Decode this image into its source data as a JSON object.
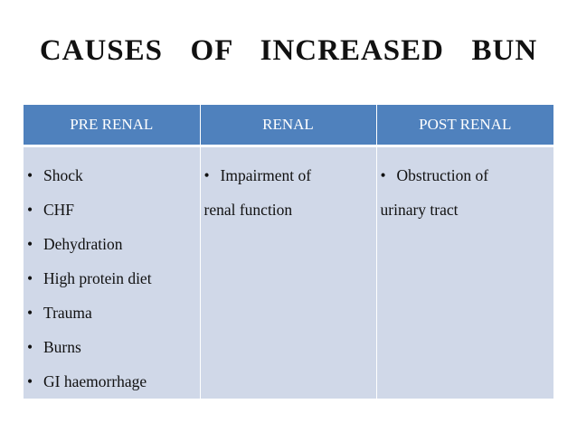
{
  "title": "CAUSES  OF  INCREASED  BUN",
  "table": {
    "headers": [
      "PRE RENAL",
      "RENAL",
      "POST RENAL"
    ],
    "pre_renal": {
      "items": [
        "Shock",
        "CHF",
        "Dehydration",
        "High protein diet",
        "Trauma",
        "Burns",
        "GI haemorrhage"
      ]
    },
    "renal": {
      "first_line": "Impairment of",
      "second_line": "renal  function"
    },
    "post_renal": {
      "first_line": "Obstruction of",
      "second_line": "urinary tract"
    }
  },
  "colors": {
    "header_bg": "#4f81bd",
    "cell_bg": "#d0d8e8",
    "header_text": "#ffffff"
  },
  "bullet_glyph": "•"
}
